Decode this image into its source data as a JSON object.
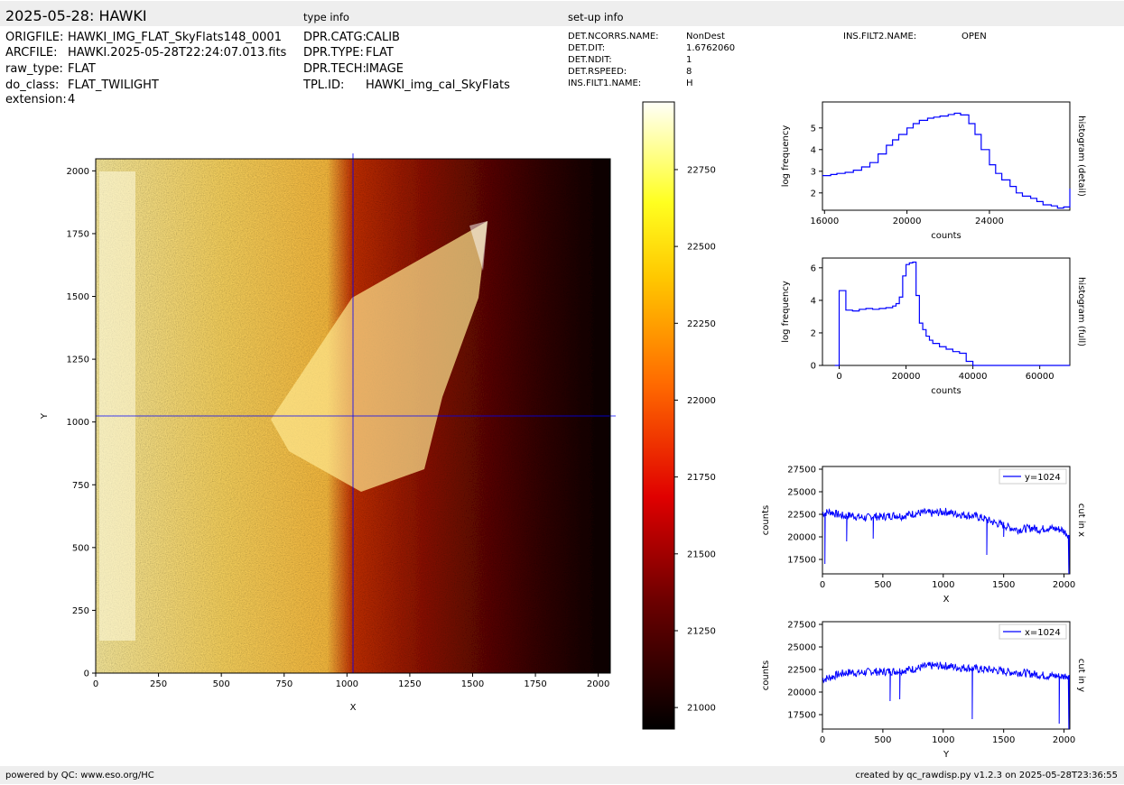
{
  "header": {
    "title": "2025-05-28: HAWKI",
    "type_info_heading": "type info",
    "setup_info_heading": "set-up info"
  },
  "file_info": [
    {
      "key": "ORIGFILE:",
      "value": "HAWKI_IMG_FLAT_SkyFlats148_0001"
    },
    {
      "key": "ARCFILE:",
      "value": "HAWKI.2025-05-28T22:24:07.013.fits"
    },
    {
      "key": "raw_type:",
      "value": "FLAT"
    },
    {
      "key": "do_class:",
      "value": "FLAT_TWILIGHT"
    },
    {
      "key": "extension:",
      "value": "4"
    }
  ],
  "type_info": [
    {
      "key": "DPR.CATG:",
      "value": "CALIB"
    },
    {
      "key": "DPR.TYPE:",
      "value": "FLAT"
    },
    {
      "key": "DPR.TECH:",
      "value": "IMAGE"
    },
    {
      "key": "TPL.ID:",
      "value": "HAWKI_img_cal_SkyFlats"
    }
  ],
  "setup_info": [
    {
      "key": "DET.NCORRS.NAME:",
      "value": "NonDest"
    },
    {
      "key": "DET.DIT:",
      "value": "1.6762060"
    },
    {
      "key": "DET.NDIT:",
      "value": "1"
    },
    {
      "key": "DET.RSPEED:",
      "value": "8"
    },
    {
      "key": "INS.FILT1.NAME:",
      "value": "H"
    }
  ],
  "setup_info_extra": [
    {
      "key": "INS.FILT2.NAME:",
      "value": "OPEN"
    }
  ],
  "footer": {
    "left": "powered by QC: www.eso.org/HC",
    "right": "created by qc_rawdisp.py v1.2.3 on 2025-05-28T23:36:55"
  },
  "colors": {
    "series": "#0000ff",
    "bar_bg": "#eeeeee",
    "crosshair": "#0000ff"
  },
  "chart_data": [
    {
      "type": "heatmap",
      "xlabel": "X",
      "ylabel": "Y",
      "xlim": [
        0,
        2048
      ],
      "ylim": [
        0,
        2048
      ],
      "xticks": [
        0,
        250,
        500,
        750,
        1000,
        1250,
        1500,
        1750,
        2000
      ],
      "yticks": [
        0,
        250,
        500,
        750,
        1000,
        1250,
        1500,
        1750,
        2000
      ],
      "crosshair": {
        "x": 1024,
        "y": 1024
      },
      "colormap": "hot",
      "colorbar": {
        "min": 20930,
        "max": 22970,
        "ticks": [
          21000,
          21250,
          21500,
          21750,
          22000,
          22250,
          22500,
          22750
        ]
      }
    },
    {
      "type": "line",
      "ylabel": "log frequency",
      "xlabel": "counts",
      "side_label": "histogram (detail)",
      "xlim": [
        15900,
        27900
      ],
      "ylim": [
        1.2,
        6.2
      ],
      "xticks": [
        16000,
        20000,
        24000
      ],
      "yticks": [
        2,
        3,
        4,
        5
      ],
      "x": [
        15900,
        16300,
        16600,
        17000,
        17400,
        17800,
        18200,
        18600,
        19000,
        19300,
        19600,
        20000,
        20300,
        20600,
        21000,
        21300,
        21600,
        22000,
        22300,
        22600,
        23000,
        23300,
        23600,
        24000,
        24300,
        24600,
        25000,
        25300,
        25600,
        26000,
        26300,
        26600,
        27000,
        27300,
        27600,
        27900
      ],
      "y": [
        2.8,
        2.85,
        2.9,
        2.95,
        3.05,
        3.2,
        3.4,
        3.8,
        4.2,
        4.45,
        4.7,
        5.0,
        5.2,
        5.35,
        5.45,
        5.5,
        5.55,
        5.62,
        5.68,
        5.6,
        5.2,
        4.7,
        4.0,
        3.3,
        2.9,
        2.6,
        2.3,
        2.0,
        1.85,
        1.75,
        1.6,
        1.45,
        1.4,
        1.3,
        1.35,
        2.2
      ]
    },
    {
      "type": "line",
      "ylabel": "log frequency",
      "xlabel": "counts",
      "side_label": "histogram (full)",
      "xlim": [
        -5000,
        69000
      ],
      "ylim": [
        0,
        6.6
      ],
      "xticks": [
        0,
        20000,
        40000,
        60000
      ],
      "yticks": [
        0,
        2,
        4,
        6
      ],
      "x": [
        -1300,
        0,
        2000,
        4000,
        6000,
        8000,
        10000,
        12000,
        14000,
        16000,
        17000,
        18000,
        19000,
        20000,
        21000,
        22000,
        23000,
        24000,
        25000,
        26000,
        27000,
        28000,
        30000,
        32000,
        34000,
        36000,
        38000,
        40000,
        69000
      ],
      "y": [
        0,
        4.6,
        3.4,
        3.35,
        3.45,
        3.5,
        3.45,
        3.5,
        3.55,
        3.65,
        3.8,
        4.2,
        5.5,
        6.2,
        6.3,
        6.35,
        4.3,
        2.6,
        2.2,
        1.8,
        1.55,
        1.35,
        1.15,
        1.0,
        0.85,
        0.75,
        0.25,
        0,
        0
      ]
    },
    {
      "type": "line",
      "ylabel": "counts",
      "xlabel": "X",
      "side_label": "cut in x",
      "legend": "y=1024",
      "legend_position": "top-right",
      "xlim": [
        0,
        2048
      ],
      "ylim": [
        15900,
        27800
      ],
      "xticks": [
        0,
        500,
        1000,
        1500,
        2000
      ],
      "yticks": [
        17500,
        20000,
        22500,
        25000,
        27500
      ],
      "x": [
        0,
        60,
        120,
        180,
        240,
        300,
        360,
        420,
        480,
        540,
        600,
        660,
        720,
        780,
        840,
        900,
        960,
        1020,
        1080,
        1140,
        1200,
        1260,
        1320,
        1380,
        1440,
        1500,
        1560,
        1620,
        1680,
        1740,
        1800,
        1860,
        1920,
        1980,
        2040
      ],
      "y": [
        22600,
        22800,
        22500,
        22300,
        22400,
        22200,
        22100,
        22300,
        22200,
        22300,
        22400,
        22300,
        22500,
        22600,
        22700,
        22600,
        22700,
        22800,
        22600,
        22500,
        22400,
        22300,
        22100,
        21800,
        21500,
        21300,
        21000,
        20800,
        20900,
        21000,
        20800,
        21000,
        20900,
        20800,
        20200
      ],
      "dips": [
        [
          20,
          17000
        ],
        [
          200,
          19500
        ],
        [
          420,
          19800
        ],
        [
          1360,
          18000
        ],
        [
          1500,
          20000
        ],
        [
          2040,
          15900
        ]
      ]
    },
    {
      "type": "line",
      "ylabel": "counts",
      "xlabel": "Y",
      "side_label": "cut in y",
      "legend": "x=1024",
      "legend_position": "top-right",
      "xlim": [
        0,
        2048
      ],
      "ylim": [
        15900,
        27800
      ],
      "xticks": [
        0,
        500,
        1000,
        1500,
        2000
      ],
      "yticks": [
        17500,
        20000,
        22500,
        25000,
        27500
      ],
      "x": [
        0,
        60,
        120,
        180,
        240,
        300,
        360,
        420,
        480,
        540,
        600,
        660,
        720,
        780,
        840,
        900,
        960,
        1020,
        1080,
        1140,
        1200,
        1260,
        1320,
        1380,
        1440,
        1500,
        1560,
        1620,
        1680,
        1740,
        1800,
        1860,
        1920,
        1980,
        2040
      ],
      "y": [
        21400,
        21600,
        21900,
        22100,
        22200,
        22100,
        22200,
        22300,
        22200,
        22300,
        22300,
        22400,
        22500,
        22600,
        22800,
        22900,
        22900,
        22900,
        22800,
        22700,
        22700,
        22600,
        22500,
        22500,
        22400,
        22300,
        22200,
        22200,
        22100,
        22000,
        21900,
        21800,
        21800,
        21700,
        21900
      ],
      "dips": [
        [
          560,
          19000
        ],
        [
          640,
          19200
        ],
        [
          1240,
          17000
        ],
        [
          1960,
          16500
        ],
        [
          2040,
          15900
        ]
      ]
    }
  ]
}
